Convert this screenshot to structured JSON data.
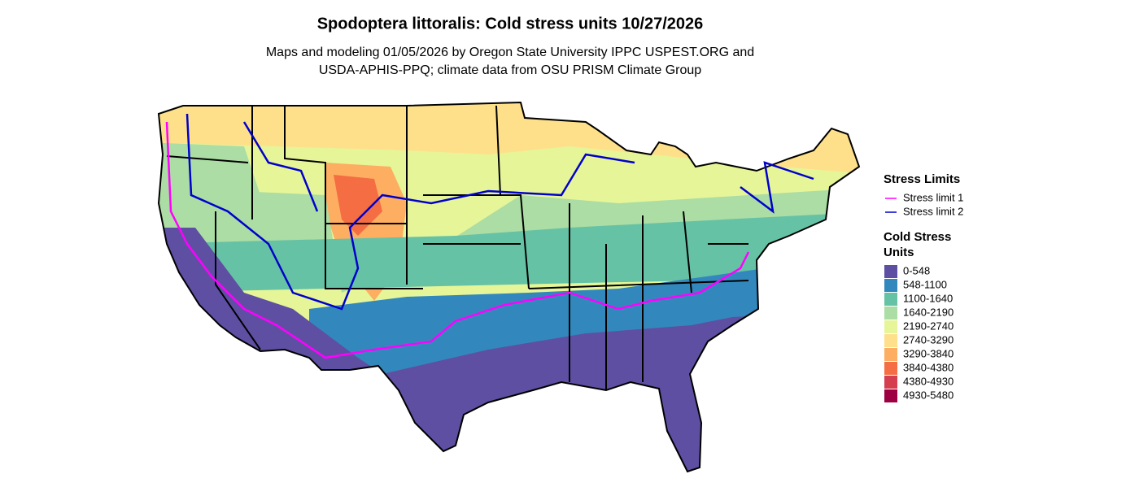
{
  "title": "Spodoptera littoralis: Cold stress units 10/27/2026",
  "subtitle": [
    "Maps and modeling 01/05/2026 by Oregon State University IPPC USPEST.ORG and",
    "USDA-APHIS-PPQ; climate data from OSU PRISM Climate Group"
  ],
  "legend": {
    "stress_limits": {
      "title": "Stress Limits",
      "items": [
        {
          "label": "Stress limit 1",
          "color": "#ff00ff"
        },
        {
          "label": "Stress limit 2",
          "color": "#0000cc"
        }
      ]
    },
    "cold_stress": {
      "title": [
        "Cold Stress",
        "Units"
      ],
      "items": [
        {
          "label": "0-548",
          "color": "#5e4fa2"
        },
        {
          "label": "548-1100",
          "color": "#3288bd"
        },
        {
          "label": "1100-1640",
          "color": "#66c2a5"
        },
        {
          "label": "1640-2190",
          "color": "#abdda4"
        },
        {
          "label": "2190-2740",
          "color": "#e6f598"
        },
        {
          "label": "2740-3290",
          "color": "#fee08b"
        },
        {
          "label": "3290-3840",
          "color": "#fdae61"
        },
        {
          "label": "3840-4380",
          "color": "#f46d43"
        },
        {
          "label": "4380-4930",
          "color": "#d53e4f"
        },
        {
          "label": "4930-5480",
          "color": "#9e0142"
        }
      ]
    }
  }
}
